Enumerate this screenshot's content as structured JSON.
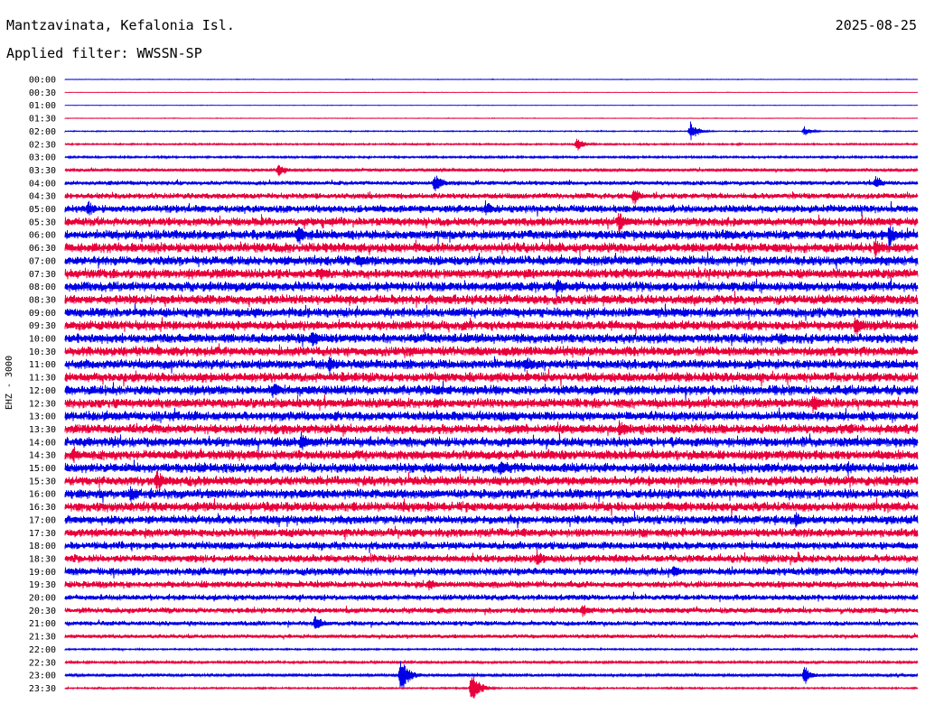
{
  "header": {
    "station": "Mantzavinata, Kefalonia Isl.",
    "date": "2025-08-25",
    "filter_label": "Applied filter: WWSSN-SP"
  },
  "chart_data": {
    "type": "line",
    "title": "Mantzavinata, Kefalonia Isl.",
    "subtitle": "Applied filter: WWSSN-SP",
    "date": "2025-08-25",
    "ylabel": "EHZ - 3000",
    "xlabel": "",
    "row_labels": [
      "00:00",
      "00:30",
      "01:00",
      "01:30",
      "02:00",
      "02:30",
      "03:00",
      "03:30",
      "04:00",
      "04:30",
      "05:00",
      "05:30",
      "06:00",
      "06:30",
      "07:00",
      "07:30",
      "08:00",
      "08:30",
      "09:00",
      "09:30",
      "10:00",
      "10:30",
      "11:00",
      "11:30",
      "12:00",
      "12:30",
      "13:00",
      "13:30",
      "14:00",
      "14:30",
      "15:00",
      "15:30",
      "16:00",
      "16:30",
      "17:00",
      "17:30",
      "18:00",
      "18:30",
      "19:00",
      "19:30",
      "20:00",
      "20:30",
      "21:00",
      "21:30",
      "22:00",
      "22:30",
      "23:00",
      "23:30"
    ],
    "row_minutes": 30,
    "series_colors": [
      "#0000e6",
      "#e8003c"
    ],
    "background_level": [
      0.3,
      0.2,
      0.2,
      0.3,
      0.5,
      0.8,
      1.0,
      1.5,
      2.2,
      3.0,
      4.0,
      4.5,
      5.0,
      5.0,
      5.0,
      5.0,
      5.0,
      5.0,
      5.0,
      5.0,
      5.0,
      5.0,
      5.0,
      5.0,
      5.0,
      5.0,
      5.0,
      5.0,
      5.0,
      5.0,
      5.0,
      5.0,
      5.0,
      5.0,
      4.5,
      4.5,
      4.0,
      4.0,
      4.0,
      3.5,
      3.0,
      3.0,
      2.5,
      2.0,
      0.8,
      1.2,
      1.5,
      0.8
    ],
    "events": [
      {
        "row": 4,
        "minute": 22,
        "amp": 12
      },
      {
        "row": 4,
        "minute": 26,
        "amp": 6
      },
      {
        "row": 5,
        "minute": 18,
        "amp": 9
      },
      {
        "row": 7,
        "minute": 7.5,
        "amp": 10
      },
      {
        "row": 8,
        "minute": 13,
        "amp": 14
      },
      {
        "row": 8,
        "minute": 28.5,
        "amp": 10
      },
      {
        "row": 9,
        "minute": 20,
        "amp": 12
      },
      {
        "row": 10,
        "minute": 0.8,
        "amp": 12
      },
      {
        "row": 10,
        "minute": 14.8,
        "amp": 11
      },
      {
        "row": 11,
        "minute": 19.5,
        "amp": 16
      },
      {
        "row": 12,
        "minute": 8.2,
        "amp": 15
      },
      {
        "row": 12,
        "minute": 29,
        "amp": 18
      },
      {
        "row": 13,
        "minute": 28.5,
        "amp": 14
      },
      {
        "row": 14,
        "minute": 10.3,
        "amp": 13
      },
      {
        "row": 15,
        "minute": 9,
        "amp": 11
      },
      {
        "row": 16,
        "minute": 17.3,
        "amp": 14
      },
      {
        "row": 19,
        "minute": 27.8,
        "amp": 15
      },
      {
        "row": 20,
        "minute": 8.7,
        "amp": 13
      },
      {
        "row": 20,
        "minute": 25.2,
        "amp": 12
      },
      {
        "row": 22,
        "minute": 9.3,
        "amp": 14
      },
      {
        "row": 22,
        "minute": 16.2,
        "amp": 12
      },
      {
        "row": 24,
        "minute": 7.3,
        "amp": 13
      },
      {
        "row": 25,
        "minute": 26.3,
        "amp": 16
      },
      {
        "row": 27,
        "minute": 19.5,
        "amp": 14
      },
      {
        "row": 28,
        "minute": 8.3,
        "amp": 13
      },
      {
        "row": 29,
        "minute": 0.3,
        "amp": 11
      },
      {
        "row": 30,
        "minute": 15.3,
        "amp": 14
      },
      {
        "row": 31,
        "minute": 3.2,
        "amp": 18
      },
      {
        "row": 32,
        "minute": 2.3,
        "amp": 14
      },
      {
        "row": 34,
        "minute": 25.7,
        "amp": 12
      },
      {
        "row": 37,
        "minute": 16.6,
        "amp": 13
      },
      {
        "row": 38,
        "minute": 21.4,
        "amp": 11
      },
      {
        "row": 39,
        "minute": 12.8,
        "amp": 10
      },
      {
        "row": 41,
        "minute": 18.2,
        "amp": 10
      },
      {
        "row": 42,
        "minute": 8.8,
        "amp": 11
      },
      {
        "row": 46,
        "minute": 11.8,
        "amp": 26
      },
      {
        "row": 46,
        "minute": 26.0,
        "amp": 12
      },
      {
        "row": 47,
        "minute": 14.3,
        "amp": 22
      }
    ]
  }
}
